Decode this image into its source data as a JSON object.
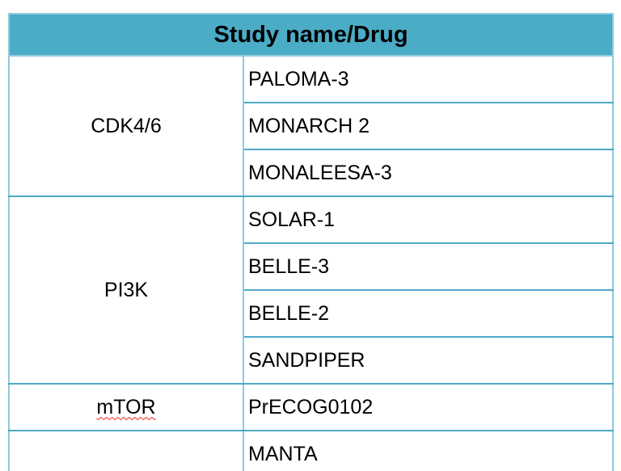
{
  "colors": {
    "header_bg": "#4BACC6",
    "row_border": "#4DA8C5",
    "group_border": "#3D9DB9",
    "column_border": "#8FCADC",
    "spellcheck_underline": "#EF1F1A",
    "text": "#000000"
  },
  "table": {
    "header": "Study name/Drug",
    "groups": [
      {
        "drug": "CDK4/6",
        "studies": [
          "PALOMA-3",
          "MONARCH 2",
          "MONALEESA-3"
        ]
      },
      {
        "drug": "PI3K",
        "studies": [
          "SOLAR-1",
          "BELLE-3",
          "BELLE-2",
          "SANDPIPER"
        ]
      },
      {
        "drug": "mTOR",
        "studies": [
          "PrECOG0102"
        ]
      },
      {
        "drug": "",
        "studies": [
          "MANTA"
        ]
      }
    ]
  }
}
